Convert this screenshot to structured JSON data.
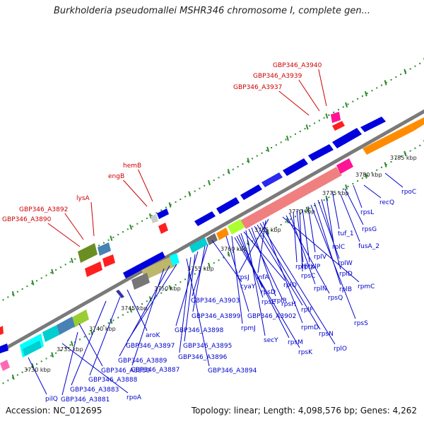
{
  "header": {
    "title": "Burkholderia pseudomallei MSHR346 chromosome I, complete gen..."
  },
  "footer": {
    "accession": "Accession: NC_012695",
    "summary": "Topology: linear; Length: 4,098,576 bp; Genes: 4,262"
  },
  "colors": {
    "label_red": "#cc0000",
    "label_blue": "#0000cc",
    "backbone": "#888888",
    "tick": "#2e8b2e"
  },
  "ticks": [
    "3730 kbp",
    "3735 kbp",
    "3740 kbp",
    "3745 kbp",
    "3750 kbp",
    "3755 kbp",
    "3760 kbp",
    "3765 kbp",
    "3770 kbp",
    "3775 kbp",
    "3780 kbp",
    "3785 kbp"
  ],
  "labels_red": [
    "GBP346_A3940",
    "GBP346_A3939",
    "GBP346_A3937",
    "hemB",
    "engB",
    "lysA",
    "GBP346_A3892",
    "GBP346_A3890"
  ],
  "labels_blue": [
    "rpoC",
    "recQ",
    "rpsL",
    "rpsG",
    "tuf_1",
    "fusA_2",
    "rplC",
    "rplD",
    "rplW",
    "rplB",
    "rpsS",
    "rplV",
    "rplP",
    "rpsC",
    "rplX",
    "rplE",
    "rplN",
    "rpsQ",
    "rpmC",
    "rpsJ",
    "infA",
    "rpmD",
    "rplO",
    "rpsN",
    "rplF",
    "rplR",
    "rpsH",
    "secY",
    "rplQ",
    "rpsE",
    "rpsD",
    "rpsM",
    "rpsK",
    "rpmJ",
    "GBP346_A3902",
    "GBP346_A3903",
    "GBP346_A3899",
    "GBP346_A3898",
    "GBP346_A3895",
    "GBP346_A3896",
    "GBP346_A3894",
    "GBP346_A3897",
    "GBP346_A3889",
    "GBP346_A3887",
    "GBP346_A3888",
    "GBP346_A3883",
    "GBP346_A3881",
    "GBP346_A3880",
    "aroK",
    "cyaY",
    "rpoA",
    "pilQ",
    "ugpC"
  ]
}
